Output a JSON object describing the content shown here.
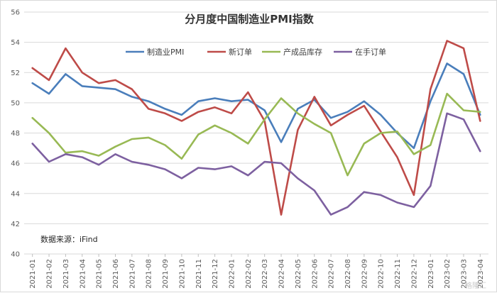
{
  "chart_data": {
    "type": "line",
    "title": "分月度中国制造业PMI指数",
    "source_note": "数据来源：iFind",
    "watermark": "格隆汇",
    "ylim": [
      40,
      56
    ],
    "yticks": [
      40,
      42,
      44,
      46,
      48,
      50,
      52,
      54,
      56
    ],
    "grid": true,
    "legend_position": "top",
    "categories": [
      "2021-01",
      "2021-02",
      "2021-03",
      "2021-04",
      "2021-05",
      "2021-06",
      "2021-07",
      "2021-08",
      "2021-09",
      "2021-10",
      "2021-11",
      "2021-12",
      "2022-01",
      "2022-02",
      "2022-03",
      "2022-04",
      "2022-05",
      "2022-06",
      "2022-07",
      "2022-08",
      "2022-09",
      "2022-10",
      "2022-11",
      "2022-12",
      "2023-01",
      "2023-02",
      "2023-03",
      "2023-04"
    ],
    "series": [
      {
        "name": "制造业PMI",
        "color": "#4a7ebb",
        "values": [
          51.3,
          50.6,
          51.9,
          51.1,
          51.0,
          50.9,
          50.4,
          50.1,
          49.6,
          49.2,
          50.1,
          50.3,
          50.1,
          50.2,
          49.5,
          47.4,
          49.6,
          50.2,
          49.0,
          49.4,
          50.1,
          49.2,
          48.0,
          47.0,
          50.1,
          52.6,
          51.9,
          49.2
        ]
      },
      {
        "name": "新订单",
        "color": "#be4b48",
        "values": [
          52.3,
          51.5,
          53.6,
          52.0,
          51.3,
          51.5,
          50.9,
          49.6,
          49.3,
          48.8,
          49.4,
          49.7,
          49.3,
          50.7,
          48.8,
          42.6,
          48.2,
          50.4,
          48.5,
          49.2,
          49.8,
          48.1,
          46.4,
          43.9,
          50.9,
          54.1,
          53.6,
          48.8
        ]
      },
      {
        "name": "产成品库存",
        "color": "#98b954",
        "values": [
          49.0,
          48.0,
          46.7,
          46.8,
          46.5,
          47.1,
          47.6,
          47.7,
          47.2,
          46.3,
          47.9,
          48.5,
          48.0,
          47.3,
          48.9,
          50.3,
          49.3,
          48.6,
          48.0,
          45.2,
          47.3,
          48.0,
          48.1,
          46.6,
          47.2,
          50.6,
          49.5,
          49.4
        ]
      },
      {
        "name": "在手订单",
        "color": "#7d60a0",
        "values": [
          47.3,
          46.1,
          46.6,
          46.4,
          45.9,
          46.6,
          46.1,
          45.9,
          45.6,
          45.0,
          45.7,
          45.6,
          45.8,
          45.2,
          46.1,
          46.0,
          45.0,
          44.2,
          42.6,
          43.1,
          44.1,
          43.9,
          43.4,
          43.1,
          44.5,
          49.3,
          48.9,
          46.8
        ]
      }
    ]
  }
}
